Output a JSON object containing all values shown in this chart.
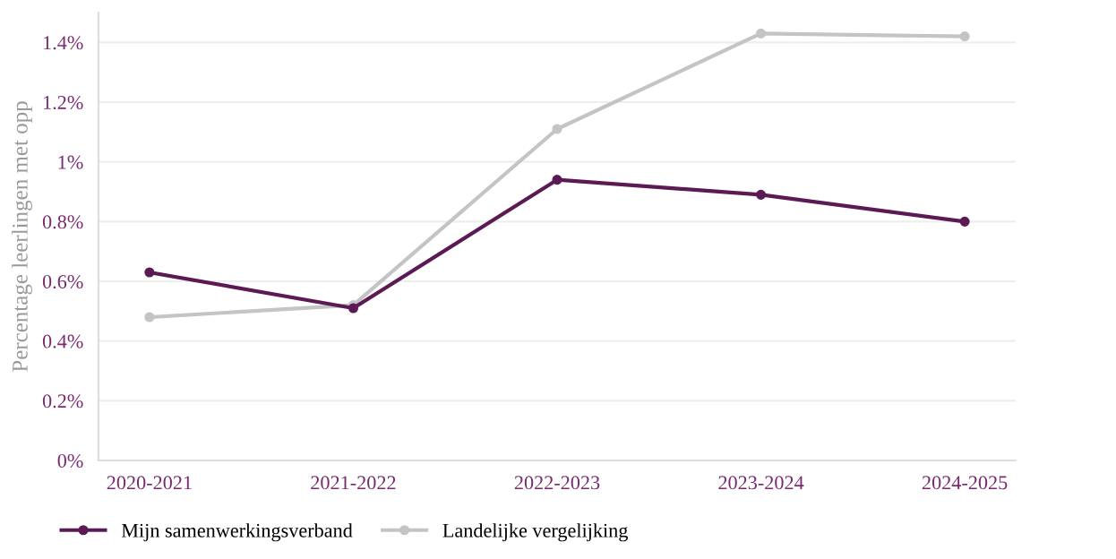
{
  "chart_data": {
    "type": "line",
    "ylabel": "Percentage leerlingen met opp",
    "categories": [
      "2020-2021",
      "2021-2022",
      "2022-2023",
      "2023-2024",
      "2024-2025"
    ],
    "series": [
      {
        "name": "Mijn samenwerkingsverband",
        "color": "#5c1a55",
        "values": [
          0.63,
          0.51,
          0.94,
          0.89,
          0.8
        ]
      },
      {
        "name": "Landelijke vergelijking",
        "color": "#c4c4c4",
        "values": [
          0.48,
          0.52,
          1.11,
          1.43,
          1.42
        ]
      }
    ],
    "ylim": [
      0,
      1.5
    ],
    "yticks": [
      {
        "value": 0,
        "label": "0%"
      },
      {
        "value": 0.2,
        "label": "0.2%"
      },
      {
        "value": 0.4,
        "label": "0.4%"
      },
      {
        "value": 0.6,
        "label": "0.6%"
      },
      {
        "value": 0.8,
        "label": "0.8%"
      },
      {
        "value": 1,
        "label": "1%"
      },
      {
        "value": 1.2,
        "label": "1.2%"
      },
      {
        "value": 1.4,
        "label": "1.4%"
      }
    ],
    "grid": "y",
    "legend": "bottom left",
    "marker": "circle",
    "line_style": "solid"
  }
}
